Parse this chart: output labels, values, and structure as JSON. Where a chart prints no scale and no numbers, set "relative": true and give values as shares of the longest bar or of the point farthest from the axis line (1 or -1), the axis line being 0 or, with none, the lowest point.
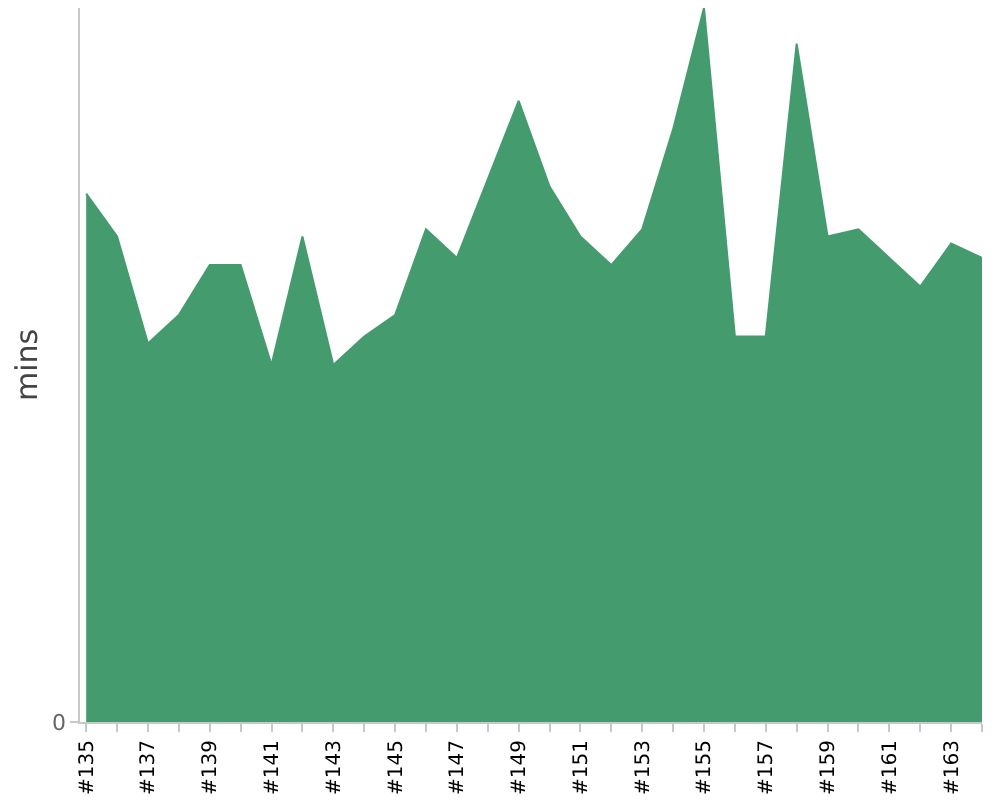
{
  "chart_data": {
    "type": "area",
    "ylabel": "mins",
    "relative": true,
    "color": "#449c6e",
    "categories": [
      "#135",
      null,
      "#137",
      null,
      "#139",
      null,
      "#141",
      null,
      "#143",
      null,
      "#145",
      null,
      "#147",
      null,
      "#149",
      null,
      "#151",
      null,
      "#153",
      null,
      "#155",
      null,
      "#157",
      null,
      "#159",
      null,
      "#161",
      null,
      "#163",
      null
    ],
    "values": [
      0.74,
      0.68,
      0.53,
      0.57,
      0.64,
      0.64,
      0.5,
      0.68,
      0.5,
      0.54,
      0.57,
      0.69,
      0.65,
      0.76,
      0.87,
      0.75,
      0.68,
      0.64,
      0.69,
      0.83,
      1,
      0.54,
      0.54,
      0.95,
      0.68,
      0.69,
      0.65,
      0.61,
      0.67,
      0.65
    ],
    "annotations": [
      "0"
    ]
  }
}
